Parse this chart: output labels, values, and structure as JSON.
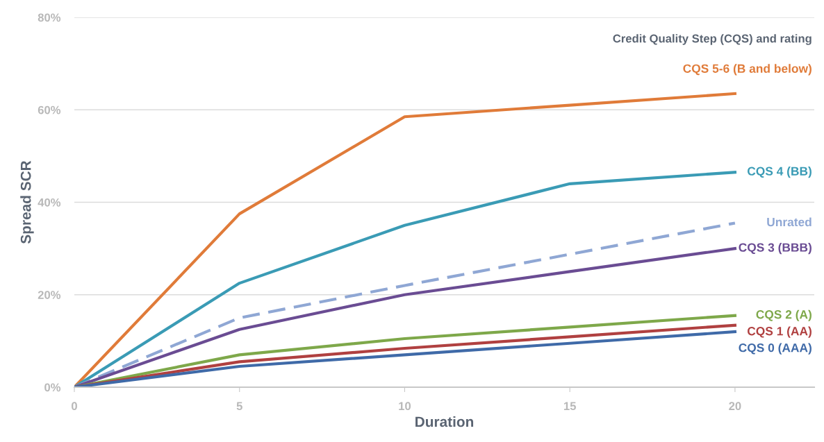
{
  "chart_data": {
    "type": "line",
    "xlabel": "Duration",
    "ylabel": "Spread SCR",
    "annotations": [
      "Credit Quality Step (CQS) and rating"
    ],
    "x": [
      0,
      5,
      10,
      15,
      20
    ],
    "xlim": [
      0,
      22.4
    ],
    "xticks": [
      0,
      5,
      10,
      15,
      20
    ],
    "ylim": [
      0,
      80
    ],
    "yticks": [
      {
        "value": 0,
        "label": "0%"
      },
      {
        "value": 20,
        "label": "20%"
      },
      {
        "value": 40,
        "label": "40%"
      },
      {
        "value": 60,
        "label": "60%"
      },
      {
        "value": 80,
        "label": "80%"
      }
    ],
    "grid": "y",
    "marker": "none",
    "line_style": "solid",
    "series": [
      {
        "name": "CQS 5-6 (B and below)",
        "color": "#e07b39",
        "values": [
          0,
          37.5,
          58.5,
          61,
          63.5
        ]
      },
      {
        "name": "CQS 4 (BB)",
        "color": "#3a9bb5",
        "values": [
          0,
          22.5,
          35,
          44,
          46.5
        ]
      },
      {
        "name": "Unrated",
        "color": "#8fa7d4",
        "line_style": "dashed",
        "x": [
          0,
          5,
          10,
          20
        ],
        "values": [
          0,
          15,
          22,
          35.5
        ]
      },
      {
        "name": "CQS 3 (BBB)",
        "color": "#6a4c93",
        "values": [
          0,
          12.5,
          20,
          25,
          30
        ]
      },
      {
        "name": "CQS 2 (A)",
        "color": "#7ea84a",
        "values": [
          0,
          7,
          10.5,
          13,
          15.5
        ]
      },
      {
        "name": "CQS 1 (AA)",
        "color": "#b04040",
        "values": [
          0,
          5.5,
          8.4,
          10.9,
          13.4
        ]
      },
      {
        "name": "CQS 0 (AAA)",
        "color": "#3f6aa8",
        "values": [
          0,
          4.5,
          7,
          9.5,
          12
        ]
      }
    ]
  }
}
